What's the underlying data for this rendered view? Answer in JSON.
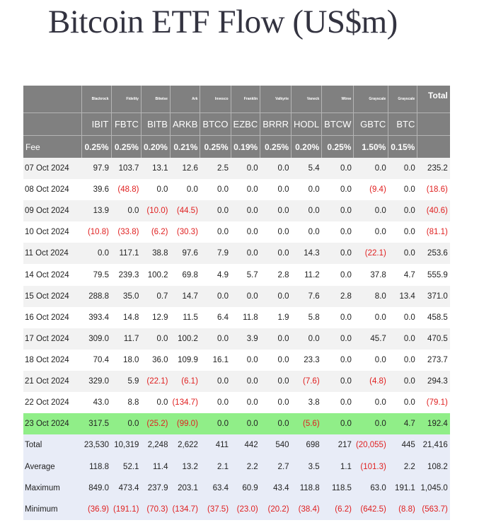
{
  "title": "Bitcoin ETF Flow (US$m)",
  "issuers": [
    "Blackrock",
    "Fidelity",
    "Bitwise",
    "Ark",
    "Invesco",
    "Franklin",
    "Valkyrie",
    "Vaneck",
    "Wtree",
    "Grayscale",
    "Grayscale"
  ],
  "total_label": "Total",
  "tickers": [
    "IBIT",
    "FBTC",
    "BITB",
    "ARKB",
    "BTCO",
    "EZBC",
    "BRRR",
    "HODL",
    "BTCW",
    "GBTC",
    "BTC"
  ],
  "fee_label": "Fee",
  "fees": [
    "0.25%",
    "0.25%",
    "0.20%",
    "0.21%",
    "0.25%",
    "0.19%",
    "0.25%",
    "0.20%",
    "0.25%",
    "1.50%",
    "0.15%"
  ],
  "rows": [
    {
      "date": "07 Oct 2024",
      "values": [
        "97.9",
        "103.7",
        "13.1",
        "12.6",
        "2.5",
        "0.0",
        "0.0",
        "5.4",
        "0.0",
        "0.0",
        "0.0",
        "235.2"
      ]
    },
    {
      "date": "08 Oct 2024",
      "values": [
        "39.6",
        "(48.8)",
        "0.0",
        "0.0",
        "0.0",
        "0.0",
        "0.0",
        "0.0",
        "0.0",
        "(9.4)",
        "0.0",
        "(18.6)"
      ]
    },
    {
      "date": "09 Oct 2024",
      "values": [
        "13.9",
        "0.0",
        "(10.0)",
        "(44.5)",
        "0.0",
        "0.0",
        "0.0",
        "0.0",
        "0.0",
        "0.0",
        "0.0",
        "(40.6)"
      ]
    },
    {
      "date": "10 Oct 2024",
      "values": [
        "(10.8)",
        "(33.8)",
        "(6.2)",
        "(30.3)",
        "0.0",
        "0.0",
        "0.0",
        "0.0",
        "0.0",
        "0.0",
        "0.0",
        "(81.1)"
      ]
    },
    {
      "date": "11 Oct 2024",
      "values": [
        "0.0",
        "117.1",
        "38.8",
        "97.6",
        "7.9",
        "0.0",
        "0.0",
        "14.3",
        "0.0",
        "(22.1)",
        "0.0",
        "253.6"
      ]
    },
    {
      "date": "14 Oct 2024",
      "values": [
        "79.5",
        "239.3",
        "100.2",
        "69.8",
        "4.9",
        "5.7",
        "2.8",
        "11.2",
        "0.0",
        "37.8",
        "4.7",
        "555.9"
      ]
    },
    {
      "date": "15 Oct 2024",
      "values": [
        "288.8",
        "35.0",
        "0.7",
        "14.7",
        "0.0",
        "0.0",
        "0.0",
        "7.6",
        "2.8",
        "8.0",
        "13.4",
        "371.0"
      ]
    },
    {
      "date": "16 Oct 2024",
      "values": [
        "393.4",
        "14.8",
        "12.9",
        "11.5",
        "6.4",
        "11.8",
        "1.9",
        "5.8",
        "0.0",
        "0.0",
        "0.0",
        "458.5"
      ]
    },
    {
      "date": "17 Oct 2024",
      "values": [
        "309.0",
        "11.7",
        "0.0",
        "100.2",
        "0.0",
        "3.9",
        "0.0",
        "0.0",
        "0.0",
        "45.7",
        "0.0",
        "470.5"
      ]
    },
    {
      "date": "18 Oct 2024",
      "values": [
        "70.4",
        "18.0",
        "36.0",
        "109.9",
        "16.1",
        "0.0",
        "0.0",
        "23.3",
        "0.0",
        "0.0",
        "0.0",
        "273.7"
      ]
    },
    {
      "date": "21 Oct 2024",
      "values": [
        "329.0",
        "5.9",
        "(22.1)",
        "(6.1)",
        "0.0",
        "0.0",
        "0.0",
        "(7.6)",
        "0.0",
        "(4.8)",
        "0.0",
        "294.3"
      ]
    },
    {
      "date": "22 Oct 2024",
      "values": [
        "43.0",
        "8.8",
        "0.0",
        "(134.7)",
        "0.0",
        "0.0",
        "0.0",
        "3.8",
        "0.0",
        "0.0",
        "0.0",
        "(79.1)"
      ]
    },
    {
      "date": "23 Oct 2024",
      "values": [
        "317.5",
        "0.0",
        "(25.2)",
        "(99.0)",
        "0.0",
        "0.0",
        "0.0",
        "(5.6)",
        "0.0",
        "0.0",
        "4.7",
        "192.4"
      ],
      "highlight": true
    }
  ],
  "stats": [
    {
      "label": "Total",
      "values": [
        "23,530",
        "10,319",
        "2,248",
        "2,622",
        "411",
        "442",
        "540",
        "698",
        "217",
        "(20,055)",
        "445",
        "21,416"
      ]
    },
    {
      "label": "Average",
      "values": [
        "118.8",
        "52.1",
        "11.4",
        "13.2",
        "2.1",
        "2.2",
        "2.7",
        "3.5",
        "1.1",
        "(101.3)",
        "2.2",
        "108.2"
      ]
    },
    {
      "label": "Maximum",
      "values": [
        "849.0",
        "473.4",
        "237.9",
        "203.1",
        "63.4",
        "60.9",
        "43.4",
        "118.8",
        "118.5",
        "63.0",
        "191.1",
        "1,045.0"
      ]
    },
    {
      "label": "Minimum",
      "values": [
        "(36.9)",
        "(191.1)",
        "(70.3)",
        "(134.7)",
        "(37.5)",
        "(23.0)",
        "(20.2)",
        "(38.4)",
        "(6.2)",
        "(642.5)",
        "(8.8)",
        "(563.7)"
      ]
    }
  ],
  "colors": {
    "header_bg": "#808080",
    "header_text": "#ffffff",
    "negative": "#e02020",
    "highlight_row": "#90ee88",
    "stats_bg": "#e8ecf7",
    "stripe": "#f2f2f2"
  }
}
